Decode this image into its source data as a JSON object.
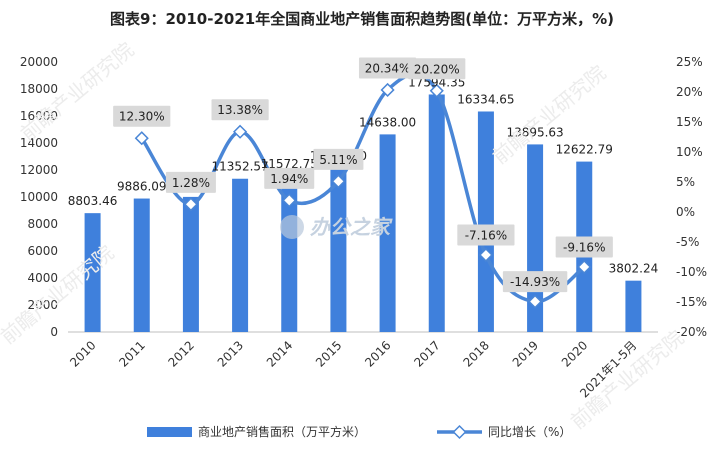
{
  "chart_data": {
    "type": "bar",
    "title": "图表9：2010-2021年全国商业地产销售面积趋势图(单位：万平方米，%)",
    "categories": [
      "2010",
      "2011",
      "2012",
      "2013",
      "2014",
      "2015",
      "2016",
      "2017",
      "2018",
      "2019",
      "2020",
      "2021年1-5月"
    ],
    "series": [
      {
        "name": "商业地产销售面积（万平方米）",
        "type": "bar",
        "axis": "left",
        "values": [
          8803.46,
          9886.09,
          10008.0,
          11352.57,
          11572.75,
          12164.2,
          14638.0,
          17594.35,
          16334.65,
          13895.63,
          12622.79,
          3802.24
        ],
        "labels": [
          "8803.46",
          "9886.09",
          "10008",
          "11352.57",
          "11572.75",
          "12164.20",
          "14638.00",
          "17594.35",
          "16334.65",
          "13895.63",
          "12622.79",
          "3802.24"
        ]
      },
      {
        "name": "同比增长（%）",
        "type": "line",
        "axis": "right",
        "values": [
          null,
          12.3,
          1.28,
          13.38,
          1.94,
          5.11,
          20.34,
          20.2,
          -7.16,
          -14.93,
          -9.16,
          null
        ],
        "labels": [
          "",
          "12.30%",
          "1.28%",
          "13.38%",
          "1.94%",
          "5.11%",
          "20.34%",
          "20.20%",
          "-7.16%",
          "-14.93%",
          "-9.16%",
          ""
        ]
      }
    ],
    "y_left": {
      "min": 0,
      "max": 20000,
      "step": 2000,
      "ticks": [
        "0",
        "2000",
        "4000",
        "6000",
        "8000",
        "10000",
        "12000",
        "14000",
        "16000",
        "18000",
        "20000"
      ]
    },
    "y_right": {
      "min": -20,
      "max": 25,
      "step": 5,
      "ticks": [
        "-20%",
        "-15%",
        "-10%",
        "-5%",
        "0%",
        "5%",
        "10%",
        "15%",
        "20%",
        "25%"
      ]
    },
    "grid": false,
    "legend_position": "bottom",
    "colors": {
      "bar": "#3f80dc",
      "line": "#4a86d6",
      "marker_fill": "#ffffff",
      "label_box": "#d9d9d9"
    }
  },
  "watermarks": [
    "前瞻产业研究院",
    "办公之家"
  ]
}
